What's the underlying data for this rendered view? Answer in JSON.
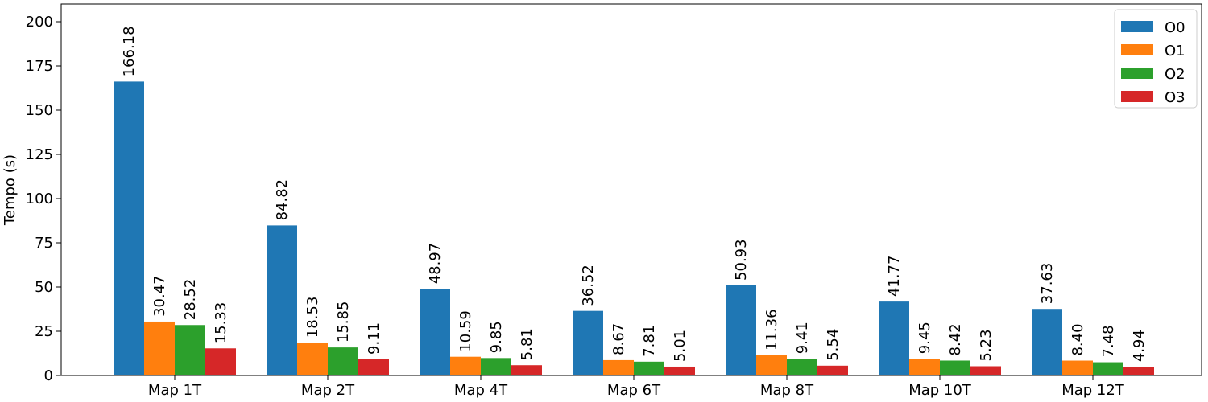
{
  "chart_data": {
    "type": "bar",
    "title": "",
    "xlabel": "",
    "ylabel": "Tempo (s)",
    "ylim": [
      0,
      210
    ],
    "yticks": [
      0,
      25,
      50,
      75,
      100,
      125,
      150,
      175,
      200
    ],
    "categories": [
      "Map 1T",
      "Map 2T",
      "Map 4T",
      "Map 6T",
      "Map 8T",
      "Map 10T",
      "Map 12T"
    ],
    "series": [
      {
        "name": "O0",
        "color": "#1f77b4",
        "values": [
          166.18,
          84.82,
          48.97,
          36.52,
          50.93,
          41.77,
          37.63
        ],
        "labels": [
          "166.18",
          "84.82",
          "48.97",
          "36.52",
          "50.93",
          "41.77",
          "37.63"
        ]
      },
      {
        "name": "O1",
        "color": "#ff7f0e",
        "values": [
          30.47,
          18.53,
          10.59,
          8.67,
          11.36,
          9.45,
          8.4
        ],
        "labels": [
          "30.47",
          "18.53",
          "10.59",
          "8.67",
          "11.36",
          "9.45",
          "8.40"
        ]
      },
      {
        "name": "O2",
        "color": "#2ca02c",
        "values": [
          28.52,
          15.85,
          9.85,
          7.81,
          9.41,
          8.42,
          7.48
        ],
        "labels": [
          "28.52",
          "15.85",
          "9.85",
          "7.81",
          "9.41",
          "8.42",
          "7.48"
        ]
      },
      {
        "name": "O3",
        "color": "#d62728",
        "values": [
          15.33,
          9.11,
          5.81,
          5.01,
          5.54,
          5.23,
          4.94
        ],
        "labels": [
          "15.33",
          "9.11",
          "5.81",
          "5.01",
          "5.54",
          "5.23",
          "4.94"
        ]
      }
    ],
    "grid": false,
    "legend": "top-right"
  }
}
